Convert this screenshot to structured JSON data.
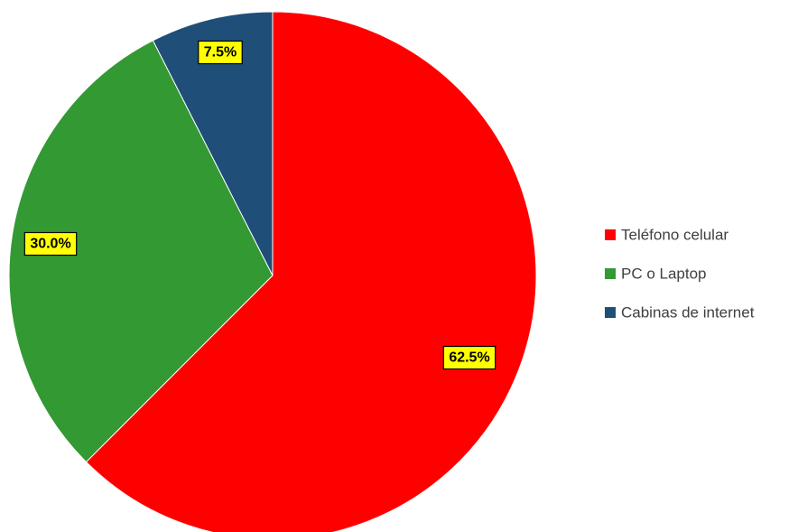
{
  "chart_data": {
    "type": "pie",
    "title": "",
    "start_angle_deg": 0,
    "direction": "clockwise",
    "legend_position": "right",
    "slices": [
      {
        "label": "Teléfono celular",
        "value": 62.5,
        "display": "62.5%",
        "color": "#ff0000"
      },
      {
        "label": "PC o Laptop",
        "value": 30.0,
        "display": "30.0%",
        "color": "#339933"
      },
      {
        "label": "Cabinas de internet",
        "value": 7.5,
        "display": "7.5%",
        "color": "#1f4e79"
      }
    ]
  }
}
